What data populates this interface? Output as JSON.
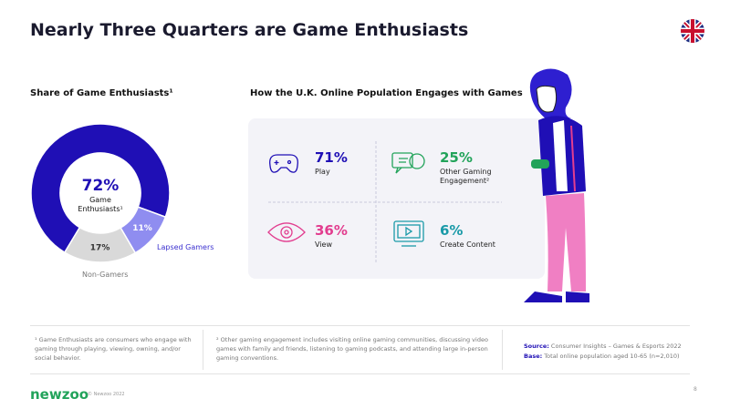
{
  "title": "Nearly Three Quarters are Game Enthusiasts",
  "chart_data": {
    "type": "donut",
    "title": "Share of Game Enthusiasts¹",
    "categories": [
      "Game Enthusiasts¹",
      "Lapsed Gamers",
      "Non-Gamers"
    ],
    "values": [
      72,
      11,
      17
    ],
    "value_labels": [
      "72%",
      "11%",
      "17%"
    ],
    "colors": [
      "#1f0fb5",
      "#8f8df0",
      "#d9d9d9"
    ]
  },
  "engagement": {
    "title": "How the U.K. Online Population Engages with Games",
    "items": [
      {
        "value": "71%",
        "label": "Play",
        "color": "#1f0fb5"
      },
      {
        "value": "25%",
        "label": "Other Gaming Engagement²",
        "color": "#22a35a"
      },
      {
        "value": "36%",
        "label": "View",
        "color": "#e23d8f"
      },
      {
        "value": "6%",
        "label": "Create Content",
        "color": "#1a9aa8"
      }
    ]
  },
  "footnotes": [
    "¹ Game Enthusiasts are consumers who engage with gaming through playing, viewing, owning, and/or social behavior.",
    "² Other gaming engagement includes visiting online gaming communities, discussing video games with family and friends, listening to gaming podcasts, and attending large in-person gaming conventions."
  ],
  "source": {
    "label": "Source:",
    "text": "Consumer Insights – Games & Esports 2022"
  },
  "base": {
    "label": "Base:",
    "text": "Total online population aged 10-65 (n=2,010)"
  },
  "logo": "newzoo",
  "copyright": "© Newzoo 2022",
  "page": "8"
}
